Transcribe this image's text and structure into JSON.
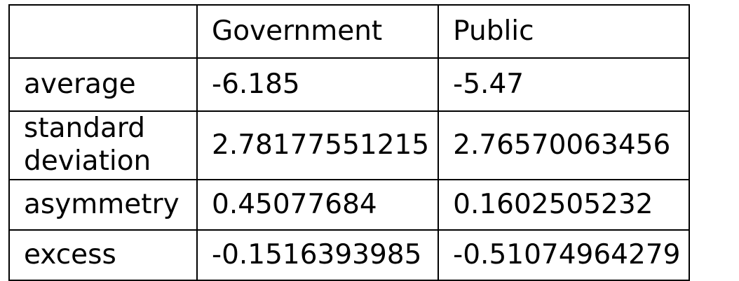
{
  "table": {
    "columns": [
      "",
      "Government",
      "Public"
    ],
    "rows": [
      {
        "label": "average",
        "government": "-6.185",
        "public": "-5.47"
      },
      {
        "label_lines": [
          "standard",
          "deviation"
        ],
        "government": "2.78177551215",
        "public": "2.76570063456"
      },
      {
        "label": "asymmetry",
        "government": "0.45077684",
        "public": "0.1602505232"
      },
      {
        "label": "excess",
        "government": "-0.1516393985",
        "public": "-0.51074964279"
      }
    ]
  }
}
